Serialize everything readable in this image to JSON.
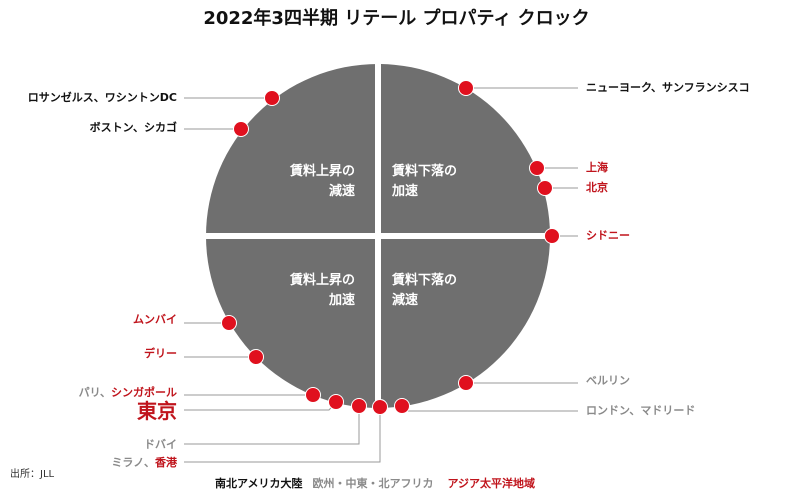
{
  "title": "2022年3四半期 リテール プロパティ クロック",
  "quadrants": {
    "top_left": [
      "賃料上昇の",
      "減速"
    ],
    "top_right": [
      "賃料下落の",
      "加速"
    ],
    "bottom_left": [
      "賃料上昇の",
      "加速"
    ],
    "bottom_right": [
      "賃料下落の",
      "減速"
    ]
  },
  "regions": [
    {
      "name": "南北アメリカ大陸",
      "color": "#111111"
    },
    {
      "name": "欧州・中東・北アフリカ",
      "color": "#8a8a8a"
    },
    {
      "name": "アジア太平洋地域",
      "color": "#c0141c"
    }
  ],
  "colors": {
    "clock_face": "#6f6f6f",
    "dot": "#e0101e",
    "americas": "#111111",
    "emea": "#8a8a8a",
    "apac": "#c0141c"
  },
  "cities": [
    {
      "label": "ロサンゼルス、ワシントンDC",
      "region": "americas"
    },
    {
      "label": "ボストン、シカゴ",
      "region": "americas"
    },
    {
      "label": "ニューヨーク、サンフランシスコ",
      "region": "americas"
    },
    {
      "label": "上海",
      "region": "apac"
    },
    {
      "label": "北京",
      "region": "apac"
    },
    {
      "label": "シドニー",
      "region": "apac"
    },
    {
      "label": "ムンバイ",
      "region": "apac"
    },
    {
      "label": "デリー",
      "region": "apac"
    },
    {
      "label_parts": [
        "パリ、",
        "シンガポール"
      ],
      "regions": [
        "emea",
        "apac"
      ]
    },
    {
      "label": "東京",
      "region": "apac"
    },
    {
      "label": "ドバイ",
      "region": "emea"
    },
    {
      "label_parts": [
        "ミラノ、",
        "香港"
      ],
      "regions": [
        "emea",
        "apac"
      ]
    },
    {
      "label": "ベルリン",
      "region": "emea"
    },
    {
      "label": "ロンドン、マドリード",
      "region": "emea"
    }
  ],
  "source": "出所：JLL"
}
